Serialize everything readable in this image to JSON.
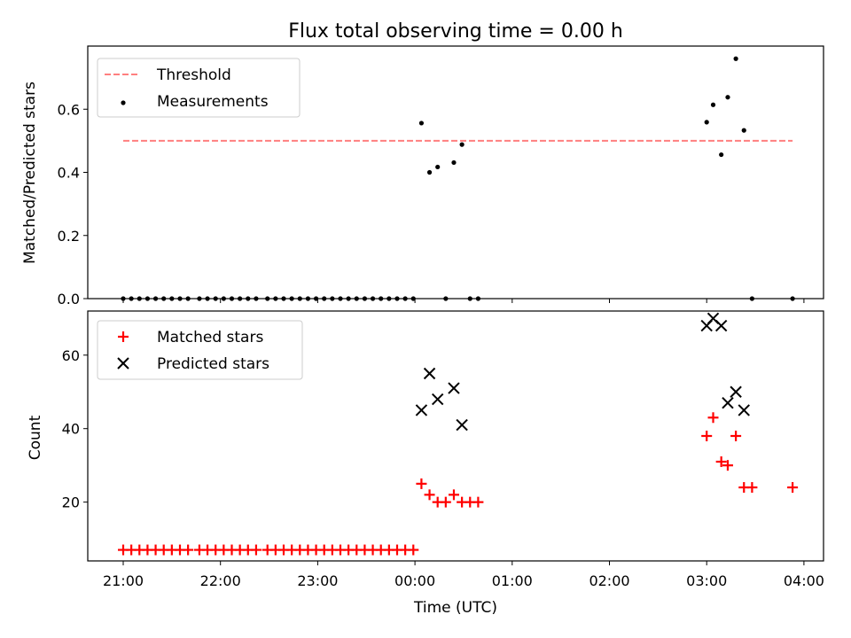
{
  "chart_data": [
    {
      "type": "scatter",
      "title": "Flux total observing time = 0.00 h",
      "xlabel": "",
      "ylabel": "Matched/Predicted stars",
      "ylim": [
        0,
        0.8
      ],
      "yticks": [
        0.0,
        0.2,
        0.4,
        0.6
      ],
      "ytick_labels": [
        "0.0",
        "0.2",
        "0.4",
        "0.6"
      ],
      "xlim": [
        "20:50",
        "04:15"
      ],
      "xticks": [
        "21:00",
        "22:00",
        "23:00",
        "00:00",
        "01:00",
        "02:00",
        "03:00",
        "04:00"
      ],
      "grid": false,
      "legend": {
        "placement": "top-left",
        "entries": [
          {
            "label": "Threshold",
            "marker": "dashed-line",
            "color": "#ff7f7f"
          },
          {
            "label": "Measurements",
            "marker": "dot",
            "color": "#000000"
          }
        ]
      },
      "threshold": {
        "label": "Threshold",
        "y": 0.5,
        "x_start": "21:00",
        "x_end": "03:53",
        "color": "#ff7f7f",
        "style": "dashed"
      },
      "series": [
        {
          "name": "Measurements",
          "color": "#000000",
          "marker": "dot",
          "points": [
            [
              "21:00",
              0
            ],
            [
              "21:05",
              0
            ],
            [
              "21:10",
              0
            ],
            [
              "21:15",
              0
            ],
            [
              "21:20",
              0
            ],
            [
              "21:25",
              0
            ],
            [
              "21:30",
              0
            ],
            [
              "21:35",
              0
            ],
            [
              "21:40",
              0
            ],
            [
              "21:47",
              0
            ],
            [
              "21:52",
              0
            ],
            [
              "21:57",
              0
            ],
            [
              "22:02",
              0
            ],
            [
              "22:07",
              0
            ],
            [
              "22:12",
              0
            ],
            [
              "22:17",
              0
            ],
            [
              "22:22",
              0
            ],
            [
              "22:29",
              0
            ],
            [
              "22:34",
              0
            ],
            [
              "22:39",
              0
            ],
            [
              "22:44",
              0
            ],
            [
              "22:49",
              0
            ],
            [
              "22:54",
              0
            ],
            [
              "22:59",
              0
            ],
            [
              "23:04",
              0
            ],
            [
              "23:09",
              0
            ],
            [
              "23:14",
              0
            ],
            [
              "23:19",
              0
            ],
            [
              "23:24",
              0
            ],
            [
              "23:29",
              0
            ],
            [
              "23:34",
              0
            ],
            [
              "23:39",
              0
            ],
            [
              "23:44",
              0
            ],
            [
              "23:49",
              0
            ],
            [
              "23:54",
              0
            ],
            [
              "23:59",
              0
            ],
            [
              "00:04",
              0.556
            ],
            [
              "00:09",
              0.4
            ],
            [
              "00:14",
              0.417
            ],
            [
              "00:19",
              0.0
            ],
            [
              "00:24",
              0.431
            ],
            [
              "00:29",
              0.488
            ],
            [
              "00:34",
              0.0
            ],
            [
              "00:39",
              0.0
            ],
            [
              "03:00",
              0.559
            ],
            [
              "03:04",
              0.614
            ],
            [
              "03:09",
              0.456
            ],
            [
              "03:13",
              0.638
            ],
            [
              "03:18",
              0.76
            ],
            [
              "03:23",
              0.533
            ],
            [
              "03:28",
              0.0
            ],
            [
              "03:53",
              0.0
            ]
          ]
        }
      ]
    },
    {
      "type": "scatter",
      "title": "",
      "xlabel": "Time (UTC)",
      "ylabel": "Count",
      "ylim": [
        4,
        72
      ],
      "yticks": [
        20,
        40,
        60
      ],
      "ytick_labels": [
        "20",
        "40",
        "60"
      ],
      "xlim": [
        "20:50",
        "04:15"
      ],
      "xticks": [
        "21:00",
        "22:00",
        "23:00",
        "00:00",
        "01:00",
        "02:00",
        "03:00",
        "04:00"
      ],
      "grid": false,
      "legend": {
        "placement": "top-left",
        "entries": [
          {
            "label": "Matched stars",
            "marker": "plus",
            "color": "#ff0000"
          },
          {
            "label": "Predicted stars",
            "marker": "x",
            "color": "#000000"
          }
        ]
      },
      "series": [
        {
          "name": "Matched stars",
          "color": "#ff0000",
          "marker": "plus",
          "points": [
            [
              "21:00",
              7
            ],
            [
              "21:05",
              7
            ],
            [
              "21:10",
              7
            ],
            [
              "21:15",
              7
            ],
            [
              "21:20",
              7
            ],
            [
              "21:25",
              7
            ],
            [
              "21:30",
              7
            ],
            [
              "21:35",
              7
            ],
            [
              "21:40",
              7
            ],
            [
              "21:47",
              7
            ],
            [
              "21:52",
              7
            ],
            [
              "21:57",
              7
            ],
            [
              "22:02",
              7
            ],
            [
              "22:07",
              7
            ],
            [
              "22:12",
              7
            ],
            [
              "22:17",
              7
            ],
            [
              "22:22",
              7
            ],
            [
              "22:29",
              7
            ],
            [
              "22:34",
              7
            ],
            [
              "22:39",
              7
            ],
            [
              "22:44",
              7
            ],
            [
              "22:49",
              7
            ],
            [
              "22:54",
              7
            ],
            [
              "22:59",
              7
            ],
            [
              "23:04",
              7
            ],
            [
              "23:09",
              7
            ],
            [
              "23:14",
              7
            ],
            [
              "23:19",
              7
            ],
            [
              "23:24",
              7
            ],
            [
              "23:29",
              7
            ],
            [
              "23:34",
              7
            ],
            [
              "23:39",
              7
            ],
            [
              "23:44",
              7
            ],
            [
              "23:49",
              7
            ],
            [
              "23:54",
              7
            ],
            [
              "23:59",
              7
            ],
            [
              "00:04",
              25
            ],
            [
              "00:09",
              22
            ],
            [
              "00:14",
              20
            ],
            [
              "00:19",
              20
            ],
            [
              "00:24",
              22
            ],
            [
              "00:29",
              20
            ],
            [
              "00:34",
              20
            ],
            [
              "00:39",
              20
            ],
            [
              "03:00",
              38
            ],
            [
              "03:04",
              43
            ],
            [
              "03:09",
              31
            ],
            [
              "03:13",
              30
            ],
            [
              "03:18",
              38
            ],
            [
              "03:23",
              24
            ],
            [
              "03:28",
              24
            ],
            [
              "03:53",
              24
            ]
          ]
        },
        {
          "name": "Predicted stars",
          "color": "#000000",
          "marker": "x",
          "points": [
            [
              "00:04",
              45
            ],
            [
              "00:09",
              55
            ],
            [
              "00:14",
              48
            ],
            [
              "00:24",
              51
            ],
            [
              "00:29",
              41
            ],
            [
              "03:00",
              68
            ],
            [
              "03:04",
              70
            ],
            [
              "03:09",
              68
            ],
            [
              "03:13",
              47
            ],
            [
              "03:18",
              50
            ],
            [
              "03:23",
              45
            ]
          ]
        }
      ]
    }
  ]
}
